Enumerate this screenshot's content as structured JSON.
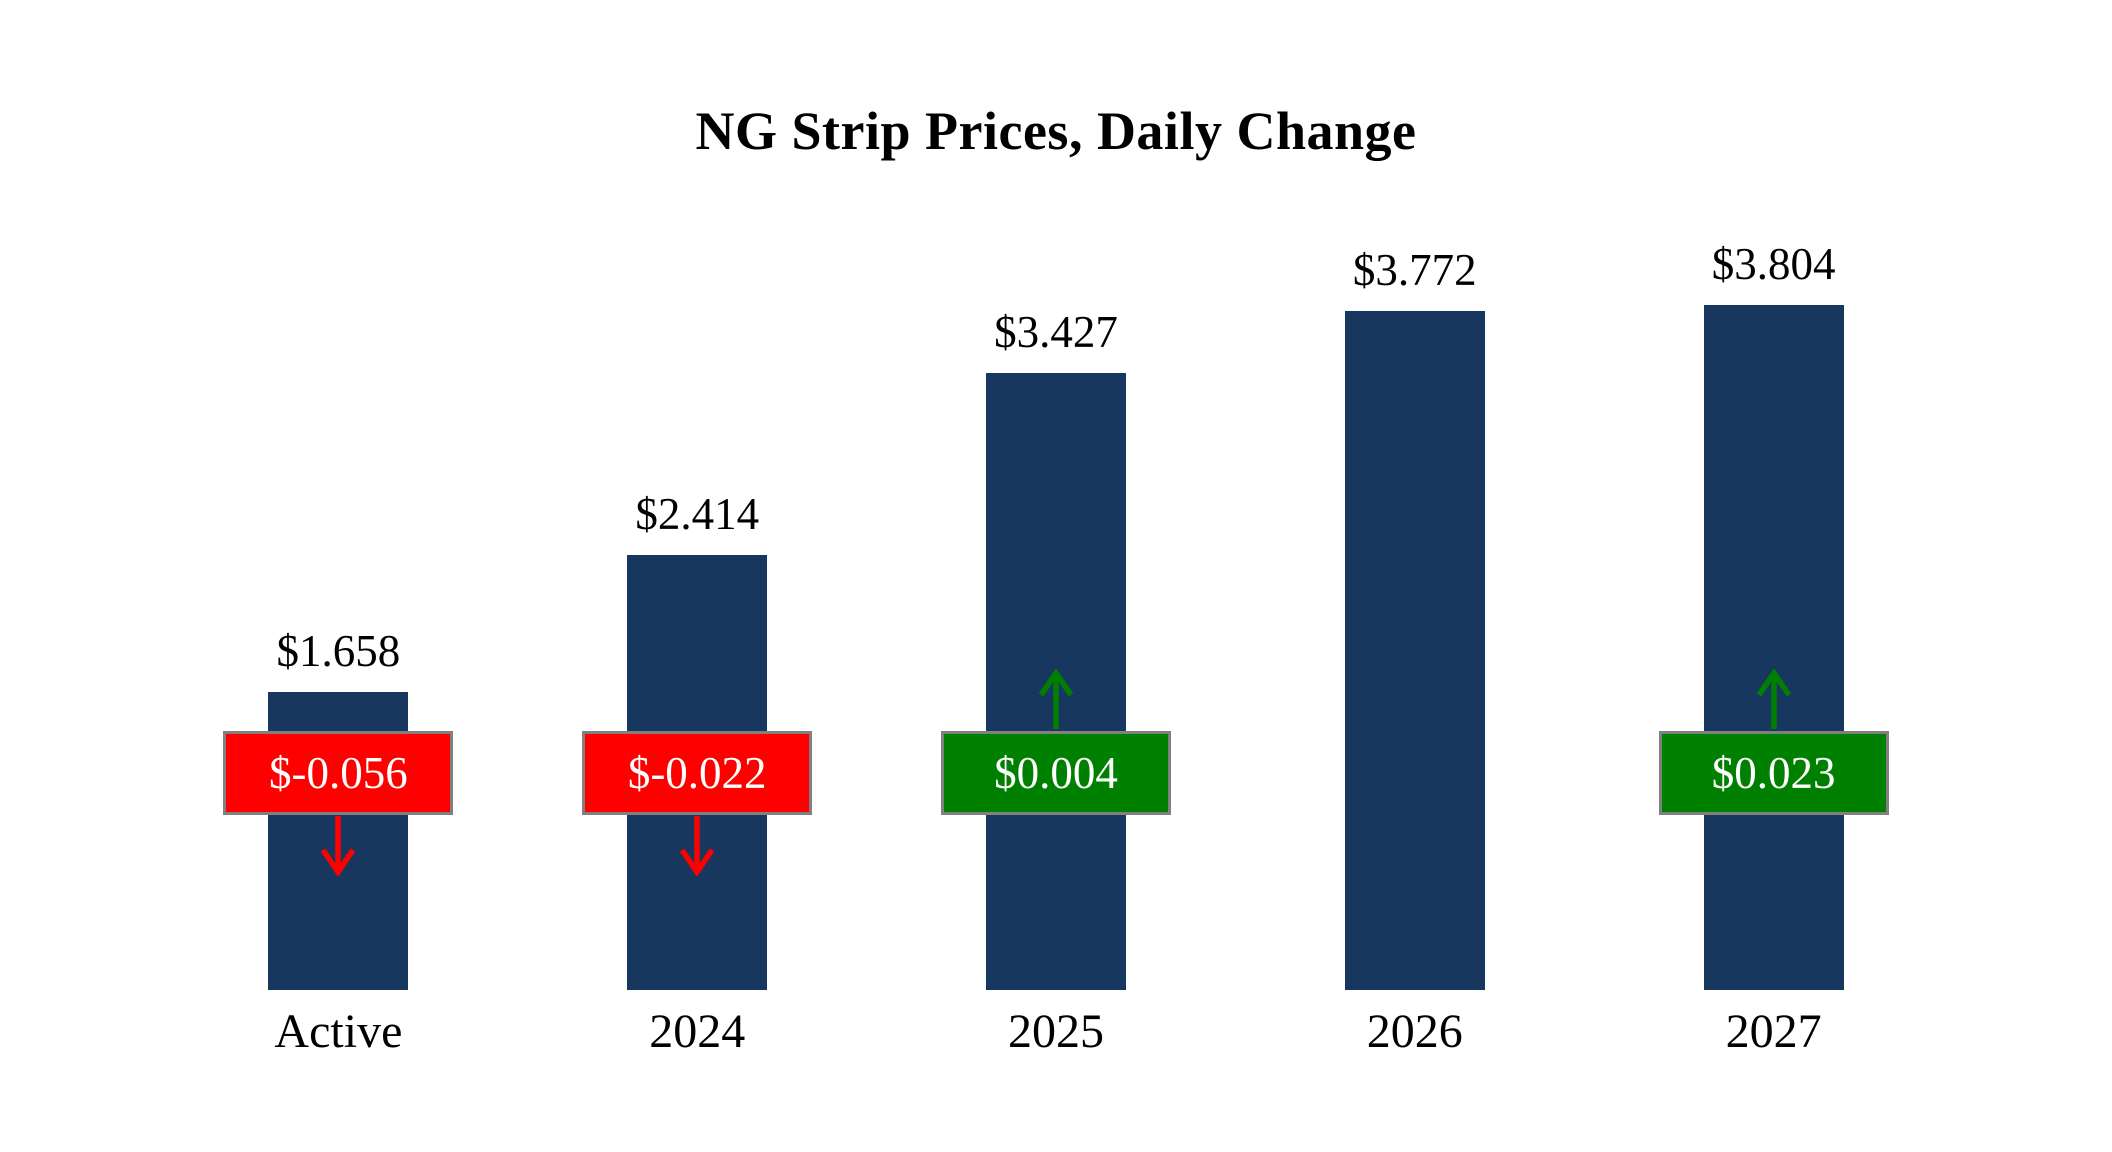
{
  "page": {
    "background": "#FFFFFF"
  },
  "colors": {
    "bar": "#17375E",
    "negative": "#FF0000",
    "positive": "#008000",
    "badge_border": "#808080",
    "badge_text": "#FFFFFF",
    "text": "#000000"
  },
  "chart_data": {
    "type": "bar",
    "title": "NG Strip Prices, Daily Change",
    "categories": [
      "Active",
      "2024",
      "2025",
      "2026",
      "2027"
    ],
    "values": [
      1.658,
      2.414,
      3.427,
      3.772,
      3.804
    ],
    "ylim": [
      0,
      4.0
    ],
    "grid": false,
    "legend": false,
    "bars": [
      {
        "category": "Active",
        "value": 1.658,
        "value_label": "$1.658",
        "change": -0.056,
        "change_label": "$-0.056",
        "direction": "down"
      },
      {
        "category": "2024",
        "value": 2.414,
        "value_label": "$2.414",
        "change": -0.022,
        "change_label": "$-0.022",
        "direction": "down"
      },
      {
        "category": "2025",
        "value": 3.427,
        "value_label": "$3.427",
        "change": 0.004,
        "change_label": "$0.004",
        "direction": "up"
      },
      {
        "category": "2026",
        "value": 3.772,
        "value_label": "$3.772",
        "change": null,
        "change_label": null,
        "direction": null
      },
      {
        "category": "2027",
        "value": 3.804,
        "value_label": "$3.804",
        "change": 0.023,
        "change_label": "$0.023",
        "direction": "up"
      }
    ]
  }
}
